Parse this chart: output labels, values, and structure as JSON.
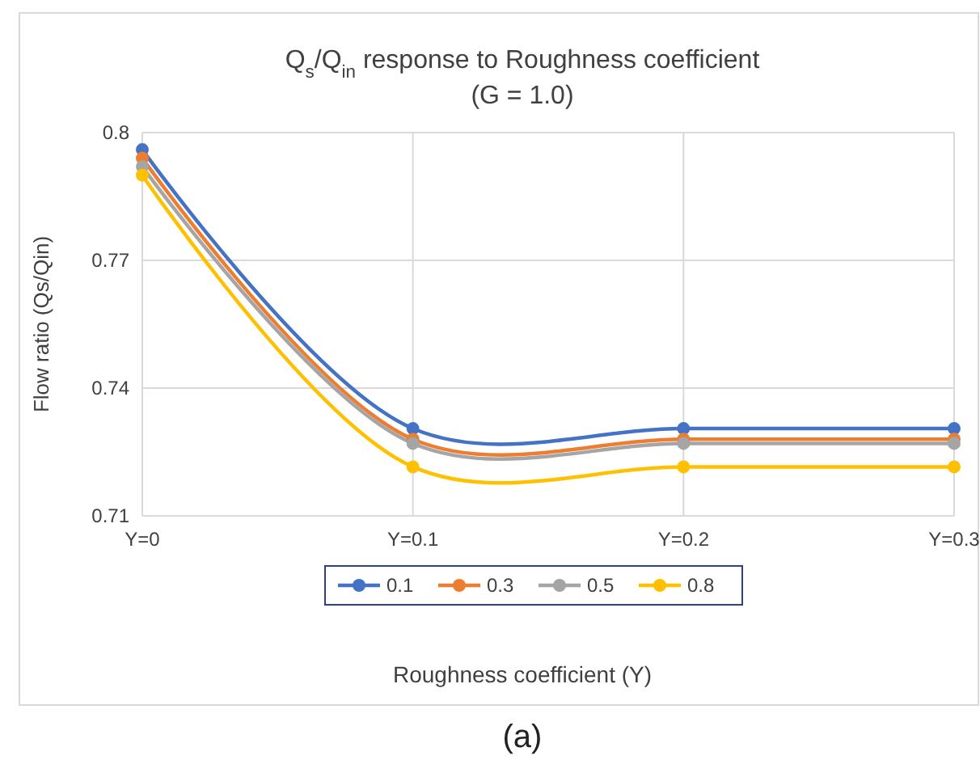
{
  "chart_data": {
    "type": "line",
    "title": "Q$_{s}$/Q$_{in}$ response to Roughness coefficient",
    "subtitle": "(G = 1.0)",
    "xlabel": "Roughness coefficient (Y)",
    "ylabel": "Flow ratio (Qs/Qin)",
    "annotations": [
      "(a)"
    ],
    "categories": [
      "Y=0",
      "Y=0.1",
      "Y=0.2",
      "Y=0.3"
    ],
    "series": [
      {
        "name": "0.1",
        "color": "#4472c4",
        "values": [
          0.796,
          0.7305,
          0.7305,
          0.7305
        ]
      },
      {
        "name": "0.3",
        "color": "#ed7d31",
        "values": [
          0.794,
          0.728,
          0.728,
          0.728
        ]
      },
      {
        "name": "0.5",
        "color": "#a5a5a5",
        "values": [
          0.792,
          0.727,
          0.727,
          0.727
        ]
      },
      {
        "name": "0.8",
        "color": "#ffc000",
        "values": [
          0.79,
          0.7215,
          0.7215,
          0.7215
        ]
      }
    ],
    "ylim": [
      0.71,
      0.8
    ],
    "yticks": [
      0.71,
      0.74,
      0.77,
      0.8
    ],
    "grid": true,
    "legend": "bottom",
    "marker": "circle",
    "line_style": "solid"
  }
}
